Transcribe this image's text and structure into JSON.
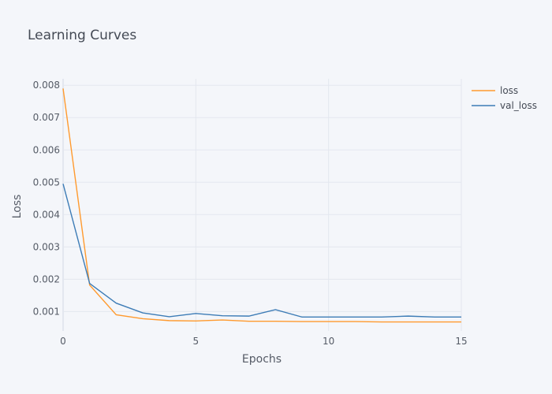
{
  "chart_data": {
    "type": "line",
    "title": "Learning Curves",
    "xlabel": "Epochs",
    "ylabel": "Loss",
    "xlim": [
      0,
      15
    ],
    "ylim": [
      0.0004,
      0.0082
    ],
    "x_ticks": [
      0,
      5,
      10,
      15
    ],
    "x_tick_labels": [
      "0",
      "5",
      "10",
      "15"
    ],
    "y_ticks": [
      0.001,
      0.002,
      0.003,
      0.004,
      0.005,
      0.006,
      0.007,
      0.008
    ],
    "y_tick_labels": [
      "0.001",
      "0.002",
      "0.003",
      "0.004",
      "0.005",
      "0.006",
      "0.007",
      "0.008"
    ],
    "grid": true,
    "legend_position": "top-right",
    "x": [
      0,
      1,
      2,
      3,
      4,
      5,
      6,
      7,
      8,
      9,
      10,
      11,
      12,
      13,
      14,
      15
    ],
    "series": [
      {
        "name": "loss",
        "color": "#ff9a2e",
        "values": [
          0.0079,
          0.00182,
          0.0009,
          0.00078,
          0.00072,
          0.00071,
          0.00074,
          0.0007,
          0.0007,
          0.00069,
          0.00069,
          0.00069,
          0.00068,
          0.00068,
          0.00068,
          0.00068
        ]
      },
      {
        "name": "val_loss",
        "color": "#3d7cb6",
        "values": [
          0.00495,
          0.00187,
          0.00126,
          0.00096,
          0.00084,
          0.00094,
          0.00087,
          0.00086,
          0.00106,
          0.00083,
          0.00083,
          0.00083,
          0.00083,
          0.00086,
          0.00083,
          0.00083
        ]
      }
    ]
  }
}
